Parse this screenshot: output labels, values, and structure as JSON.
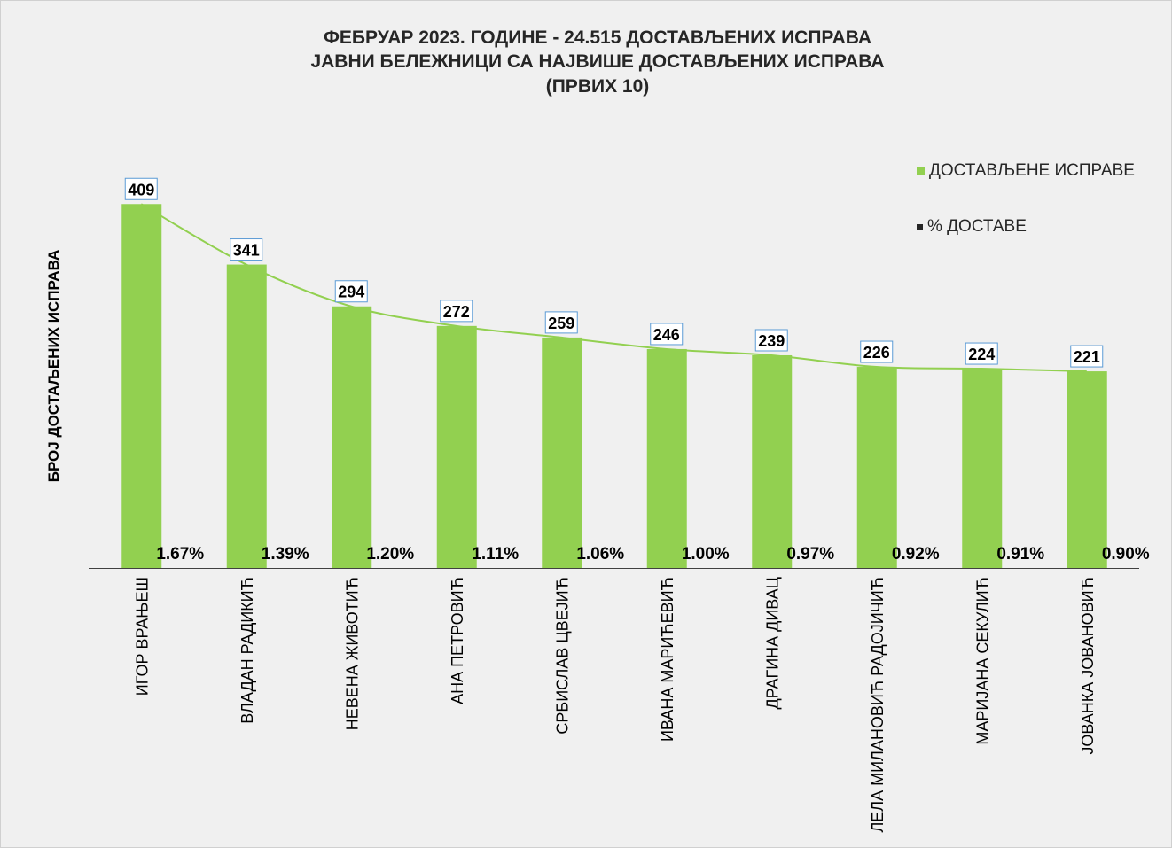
{
  "chart_data": {
    "type": "bar",
    "title_lines": [
      "ФЕБРУАР 2023. ГОДИНЕ - 24.515 ДОСТАВЉЕНИХ ИСПРАВА",
      "ЈАВНИ БЕЛЕЖНИЦИ СА НАЈВИШЕ ДОСТАВЉЕНИХ ИСПРАВА",
      "(ПРВИХ 10)"
    ],
    "ylabel": "БРОЈ ДОСТАЉЕНИХ ИСПРАВА",
    "xlabel": "",
    "categories": [
      "ИГОР ВРАЊЕШ",
      "ВЛАДАН РАДИКИЋ",
      "НЕВЕНА ЖИВОТИЋ",
      "АНА ПЕТРОВИЋ",
      "СРБИСЛАВ ЦВЕЈИЋ",
      "ИВАНА МАРИЋЕВИЋ",
      "ДРАГИНА ДИВАЦ",
      "ЛЕЛА МИЛАНОВИЋ РАДОЈИЧИЋ",
      "МАРИЈАНА СЕКУЛИЋ",
      "ЈОВАНКА ЈОВАНОВИЋ"
    ],
    "series": [
      {
        "name": "ДОСТАВЉЕНЕ ИСПРАВЕ",
        "color": "#92d050",
        "values": [
          409,
          341,
          294,
          272,
          259,
          246,
          239,
          226,
          224,
          221
        ],
        "labels": [
          "409",
          "341",
          "294",
          "272",
          "259",
          "246",
          "239",
          "226",
          "224",
          "221"
        ]
      },
      {
        "name": "% ДОСТАВЕ",
        "color": "#262626",
        "values": [
          1.67,
          1.39,
          1.2,
          1.11,
          1.06,
          1.0,
          0.97,
          0.92,
          0.91,
          0.9
        ],
        "labels": [
          "1.67%",
          "1.39%",
          "1.20%",
          "1.11%",
          "1.06%",
          "1.00%",
          "0.97%",
          "0.92%",
          "0.91%",
          "0.90%"
        ]
      }
    ],
    "trendline": {
      "type": "polynomial",
      "color": "#92d050",
      "series": "ДОСТАВЉЕНЕ ИСПРАВЕ"
    },
    "ylim": [
      0,
      469
    ],
    "legend": "right",
    "grid": false
  }
}
